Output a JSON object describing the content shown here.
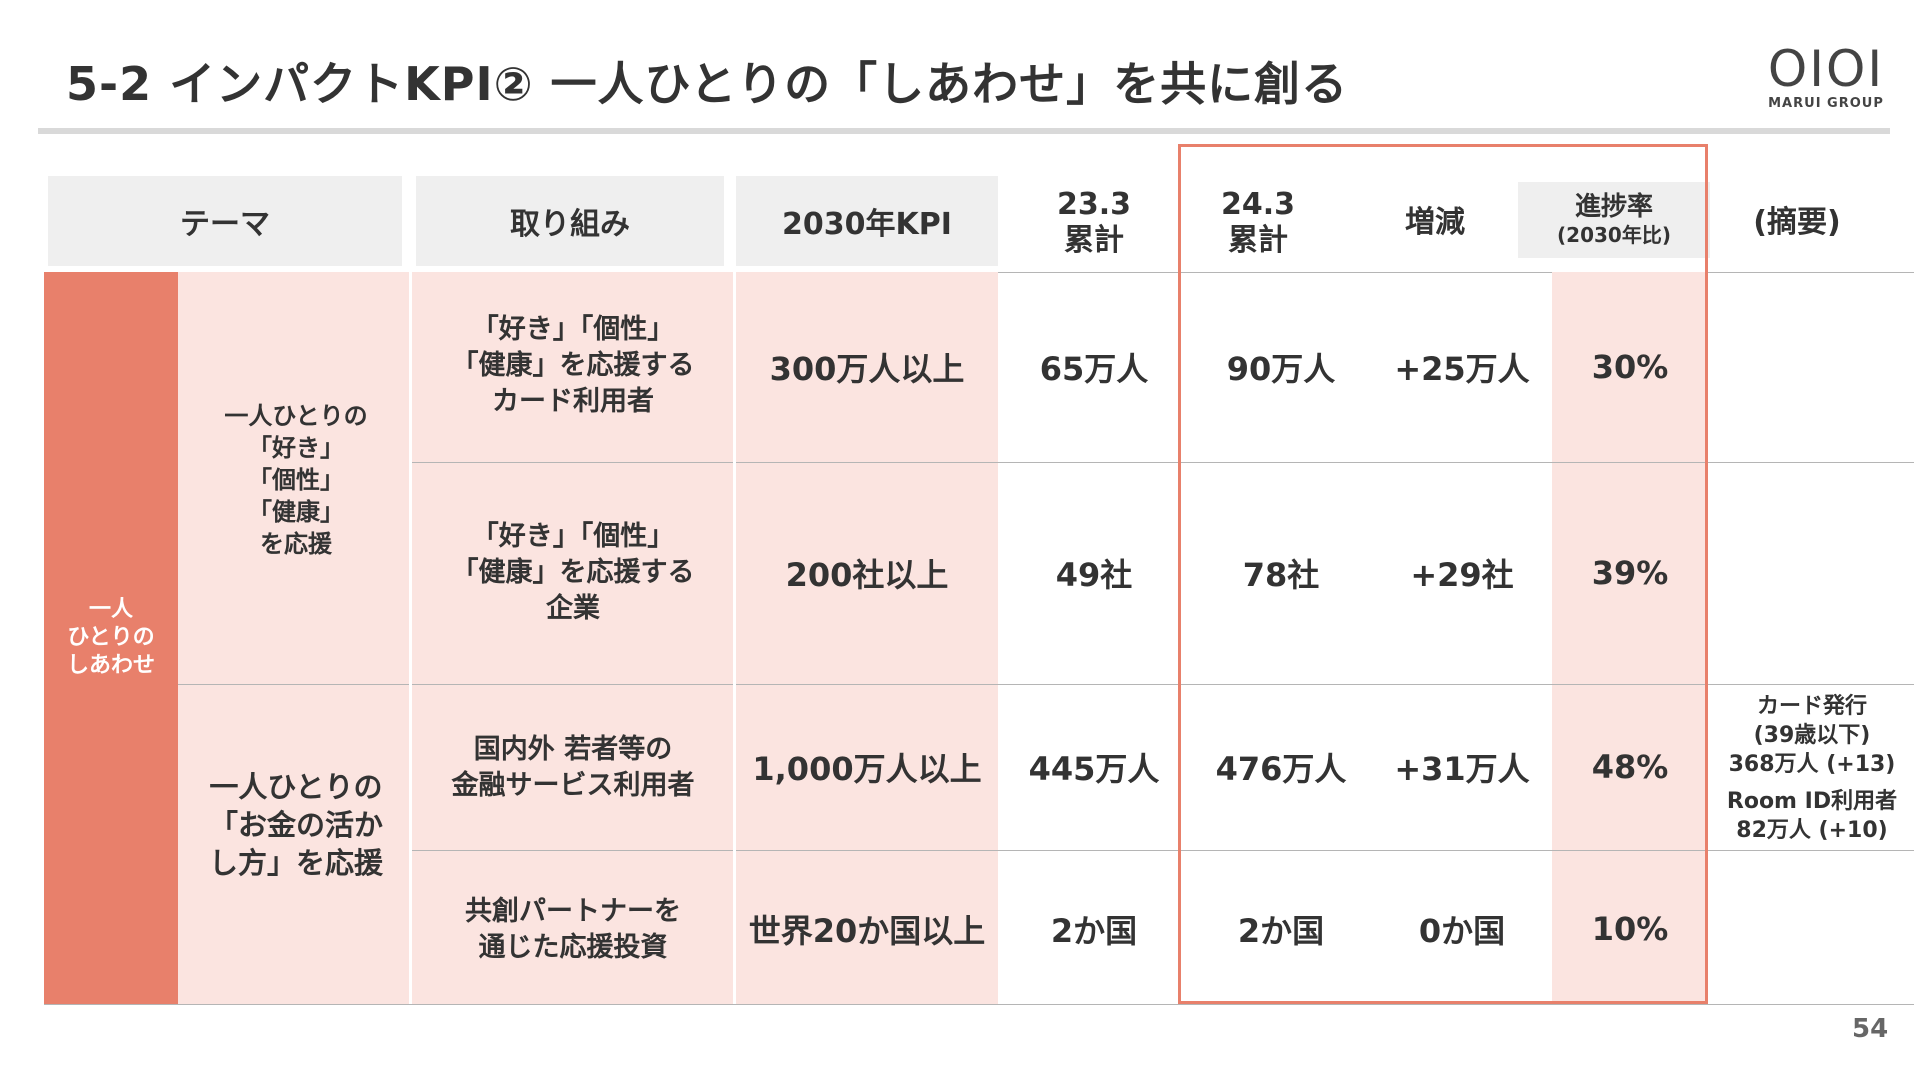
{
  "title": "5-2 インパクトKPI② 一人ひとりの「しあわせ」を共に創る",
  "logo": {
    "mark": "OIOI",
    "sub": "MARUI GROUP"
  },
  "page_number": "54",
  "colors": {
    "accent": "#e8806b",
    "pink_bg": "#fbe4e0",
    "header_bg": "#efefef"
  },
  "headers": {
    "theme": "テーマ",
    "initiative": "取り組み",
    "kpi2030": "2030年KPI",
    "cum23": "23.3\n累計",
    "cum24": "24.3\n累計",
    "change": "増減",
    "progress": "進捗率",
    "progress_sub": "(2030年比)",
    "summary": "(摘要)"
  },
  "theme_label": "一人\nひとりの\nしあわせ",
  "groups": [
    {
      "label": "一人ひとりの\n「好き」\n「個性」\n「健康」\nを応援"
    },
    {
      "label": "一人ひとりの\n「お金の活か\nし方」を応援"
    }
  ],
  "rows": [
    {
      "initiative": "「好き」「個性」\n「健康」を応援する\nカード利用者",
      "kpi": "300万人以上",
      "cum23": "65万人",
      "cum24": "90万人",
      "change": "+25万人",
      "progress": "30%",
      "note": ""
    },
    {
      "initiative": "「好き」「個性」\n「健康」を応援する\n企業",
      "kpi": "200社以上",
      "cum23": "49社",
      "cum24": "78社",
      "change": "+29社",
      "progress": "39%",
      "note": ""
    },
    {
      "initiative": "国内外 若者等の\n金融サービス利用者",
      "kpi": "1,000万人以上",
      "cum23": "445万人",
      "cum24": "476万人",
      "change": "+31万人",
      "progress": "48%",
      "note": "カード発行\n(39歳以下)\n368万人 (+13)",
      "note2": "Room ID利用者\n82万人 (+10)"
    },
    {
      "initiative": "共創パートナーを\n通じた応援投資",
      "kpi": "世界20か国以上",
      "cum23": "2か国",
      "cum24": "2か国",
      "change": "0か国",
      "progress": "10%",
      "note": ""
    }
  ]
}
